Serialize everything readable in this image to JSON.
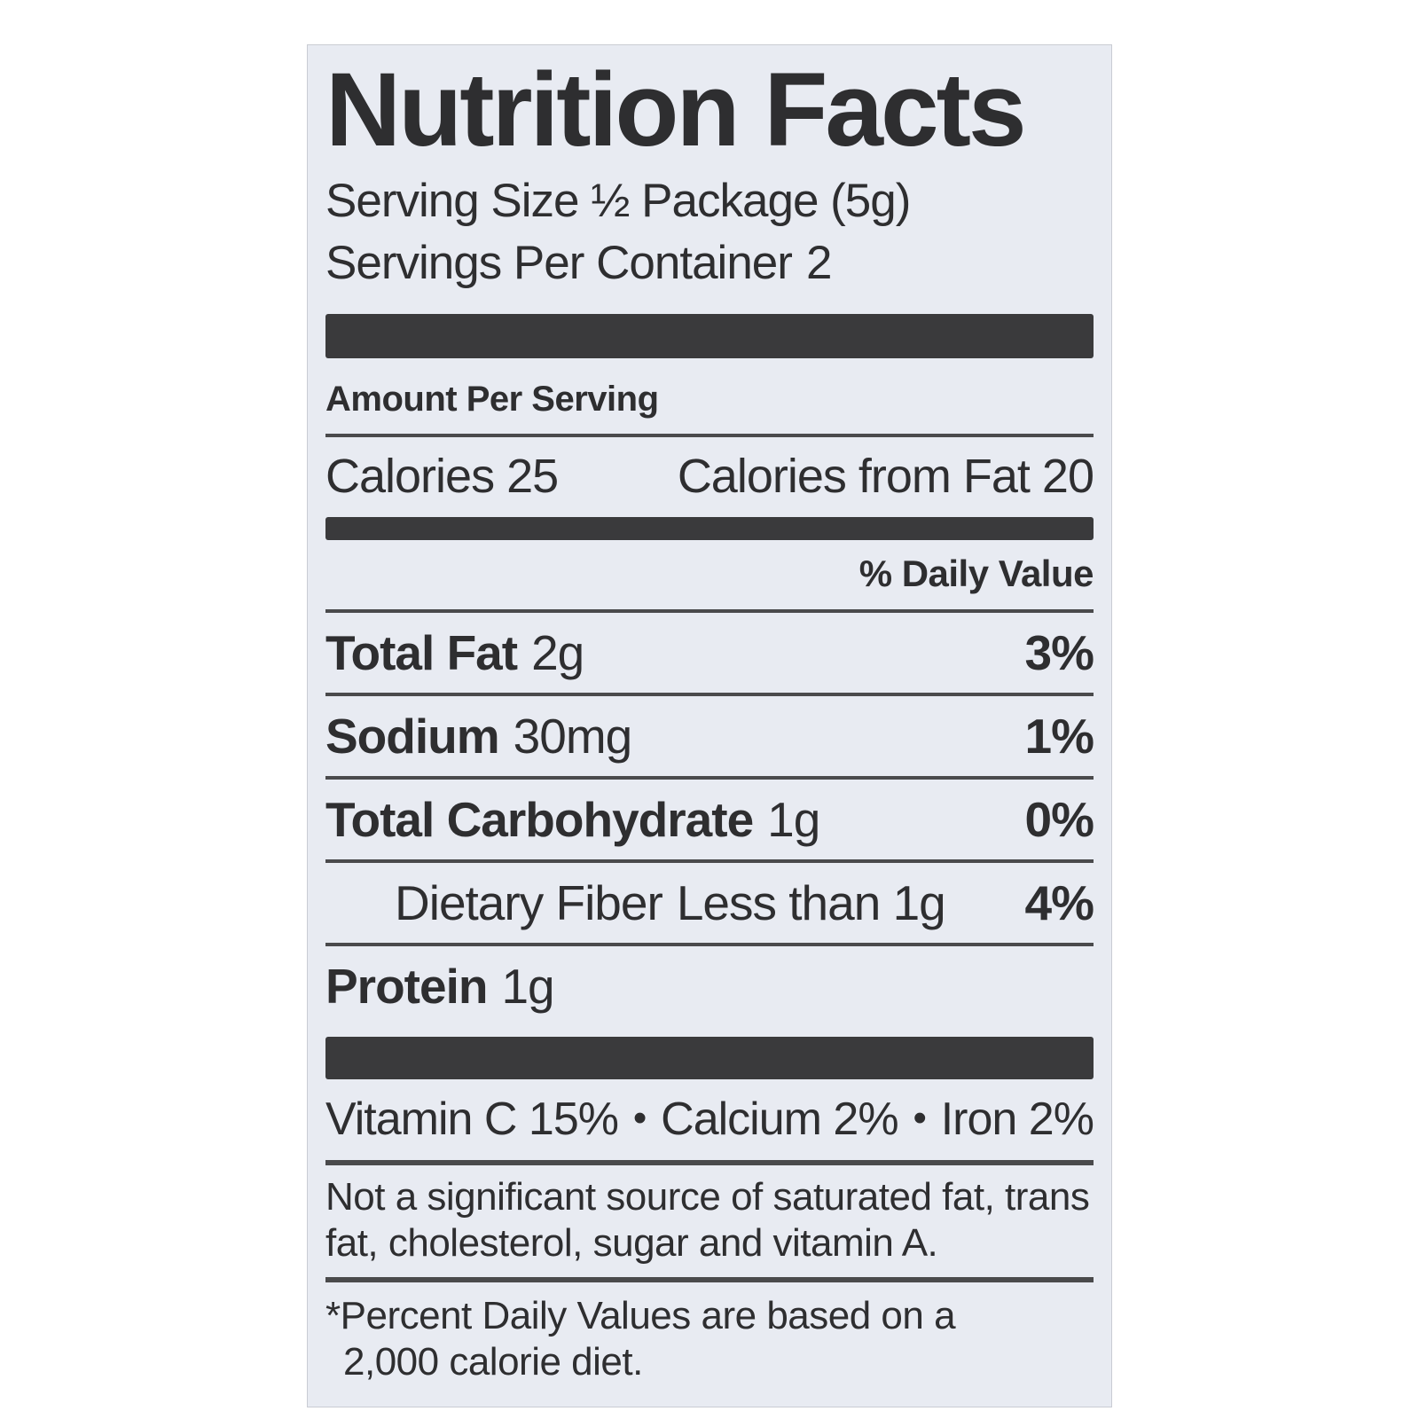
{
  "label": {
    "title": "Nutrition Facts",
    "serving_size": "Serving Size ½ Package (5g)",
    "servings_per_container": {
      "label": "Servings Per Container",
      "value": "2"
    },
    "amount_per_serving": "Amount Per Serving",
    "calories": {
      "label": "Calories",
      "value": "25"
    },
    "calories_from_fat": {
      "label": "Calories from Fat",
      "value": "20"
    },
    "daily_value_header": "% Daily Value",
    "nutrients": [
      {
        "name": "Total Fat",
        "amount": "2g",
        "dv": "3%"
      },
      {
        "name": "Sodium",
        "amount": "30mg",
        "dv": "1%"
      },
      {
        "name": "Total Carbohydrate",
        "amount": "1g",
        "dv": "0%"
      },
      {
        "name": "Dietary Fiber",
        "amount": "Less than 1g",
        "dv": "4%"
      },
      {
        "name": "Protein",
        "amount": "1g",
        "dv": ""
      }
    ],
    "vitamins": [
      {
        "name": "Vitamin C",
        "value": "15%"
      },
      {
        "name": "Calcium",
        "value": "2%"
      },
      {
        "name": "Iron",
        "value": "2%"
      }
    ],
    "vitamin_separator": "•",
    "not_significant_note": "Not a significant source of saturated fat, trans fat, cholesterol, sugar and vitamin A.",
    "footnote": "*Percent Daily Values are based on a 2,000 calorie diet.",
    "colors": {
      "page_bg": "#ffffff",
      "label_bg": "#e8ebf2",
      "bar": "#3a3a3c",
      "text": "#2e2e30",
      "line": "#4a4a4c"
    }
  }
}
